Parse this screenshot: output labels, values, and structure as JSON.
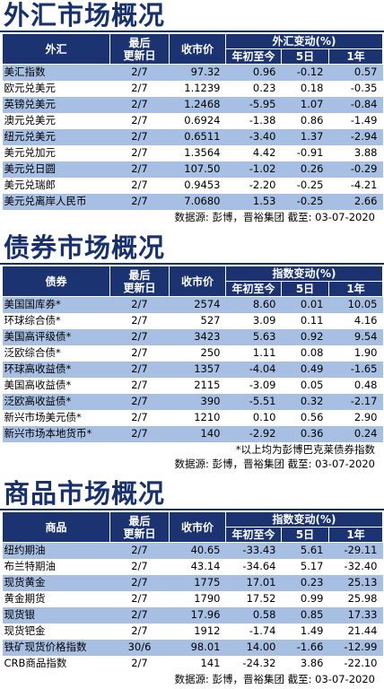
{
  "fx": {
    "title": "外汇市场概况",
    "headers": {
      "name": "外汇",
      "date": "最后\n更新日",
      "price": "收市价",
      "change": "外汇变动(%)",
      "ytd": "年初至今",
      "d5": "5日",
      "y1": "1年"
    },
    "rows": [
      {
        "name": "美汇指数",
        "date": "2/7",
        "price": "97.32",
        "ytd": "0.96",
        "d5": "-0.12",
        "y1": "0.57"
      },
      {
        "name": "欧元兑美元",
        "date": "2/7",
        "price": "1.1239",
        "ytd": "0.23",
        "d5": "0.18",
        "y1": "-0.35"
      },
      {
        "name": "英镑兑美元",
        "date": "2/7",
        "price": "1.2468",
        "ytd": "-5.95",
        "d5": "1.07",
        "y1": "-0.84"
      },
      {
        "name": "澳元兑美元",
        "date": "2/7",
        "price": "0.6924",
        "ytd": "-1.38",
        "d5": "0.86",
        "y1": "-1.49"
      },
      {
        "name": "纽元兑美元",
        "date": "2/7",
        "price": "0.6511",
        "ytd": "-3.40",
        "d5": "1.37",
        "y1": "-2.94"
      },
      {
        "name": "美元兑加元",
        "date": "2/7",
        "price": "1.3564",
        "ytd": "4.42",
        "d5": "-0.91",
        "y1": "3.88"
      },
      {
        "name": "美元兑日圆",
        "date": "2/7",
        "price": "107.50",
        "ytd": "-1.02",
        "d5": "0.26",
        "y1": "-0.29"
      },
      {
        "name": "美元兑瑞郎",
        "date": "2/7",
        "price": "0.9453",
        "ytd": "-2.20",
        "d5": "-0.25",
        "y1": "-4.21"
      },
      {
        "name": "美元兑离岸人民币",
        "date": "2/7",
        "price": "7.0680",
        "ytd": "1.53",
        "d5": "-0.25",
        "y1": "2.66"
      }
    ],
    "source": "数据源: 彭博，晋裕集团 截至: 03-07-2020"
  },
  "bonds": {
    "title": "债券市场概况",
    "headers": {
      "name": "债券",
      "date": "最后\n更新日",
      "price": "收市价",
      "change": "指数变动(%)",
      "ytd": "年初至今",
      "d5": "5日",
      "y1": "1年"
    },
    "rows": [
      {
        "name": "美国国库券*",
        "date": "2/7",
        "price": "2574",
        "ytd": "8.60",
        "d5": "0.01",
        "y1": "10.05"
      },
      {
        "name": "环球综合债*",
        "date": "2/7",
        "price": "527",
        "ytd": "3.09",
        "d5": "0.11",
        "y1": "4.16"
      },
      {
        "name": "美国高评级债*",
        "date": "2/7",
        "price": "3423",
        "ytd": "5.63",
        "d5": "0.92",
        "y1": "9.54"
      },
      {
        "name": "泛欧综合债*",
        "date": "2/7",
        "price": "250",
        "ytd": "1.11",
        "d5": "0.08",
        "y1": "1.90"
      },
      {
        "name": "环球高收益债*",
        "date": "2/7",
        "price": "1357",
        "ytd": "-4.04",
        "d5": "0.49",
        "y1": "-1.65"
      },
      {
        "name": "美国高收益债*",
        "date": "2/7",
        "price": "2115",
        "ytd": "-3.09",
        "d5": "0.05",
        "y1": "0.48"
      },
      {
        "name": "泛欧高收益债*",
        "date": "2/7",
        "price": "390",
        "ytd": "-5.51",
        "d5": "0.32",
        "y1": "-2.17"
      },
      {
        "name": "新兴市场美元债*",
        "date": "2/7",
        "price": "1210",
        "ytd": "0.10",
        "d5": "0.56",
        "y1": "2.90"
      },
      {
        "name": "新兴市场本地货币*",
        "date": "2/7",
        "price": "140",
        "ytd": "-2.92",
        "d5": "0.36",
        "y1": "0.24"
      }
    ],
    "footnote": "*以上均为彭博巴克莱债券指数",
    "source": "数据源: 彭博，晋裕集团 截至: 03-07-2020"
  },
  "commodities": {
    "title": "商品市场概况",
    "headers": {
      "name": "商品",
      "date": "最后\n更新日",
      "price": "收市价",
      "change": "指数变动(%)",
      "ytd": "年初至今",
      "d5": "5日",
      "y1": "1年"
    },
    "rows": [
      {
        "name": "纽约期油",
        "date": "2/7",
        "price": "40.65",
        "ytd": "-33.43",
        "d5": "5.61",
        "y1": "-29.11"
      },
      {
        "name": "布兰特期油",
        "date": "2/7",
        "price": "43.14",
        "ytd": "-34.64",
        "d5": "5.17",
        "y1": "-32.40"
      },
      {
        "name": "现货黄金",
        "date": "2/7",
        "price": "1775",
        "ytd": "17.01",
        "d5": "0.23",
        "y1": "25.13"
      },
      {
        "name": "黄金期货",
        "date": "2/7",
        "price": "1790",
        "ytd": "17.52",
        "d5": "0.99",
        "y1": "25.98"
      },
      {
        "name": "现货银",
        "date": "2/7",
        "price": "17.96",
        "ytd": "0.58",
        "d5": "0.85",
        "y1": "17.33"
      },
      {
        "name": "现货钯金",
        "date": "2/7",
        "price": "1912",
        "ytd": "-1.74",
        "d5": "1.49",
        "y1": "21.44"
      },
      {
        "name": "铁矿现货价格指数",
        "date": "30/6",
        "price": "98.01",
        "ytd": "14.00",
        "d5": "-1.66",
        "y1": "-12.99"
      },
      {
        "name": "CRB商品指数",
        "date": "2/7",
        "price": "141",
        "ytd": "-24.32",
        "d5": "3.86",
        "y1": "-22.10"
      }
    ],
    "source": "数据源: 彭博，晋裕集团 截至: 03-07-2020"
  },
  "colors": {
    "header": "#1b3371",
    "shade": "#a7bfe3",
    "title": "#17306e"
  }
}
